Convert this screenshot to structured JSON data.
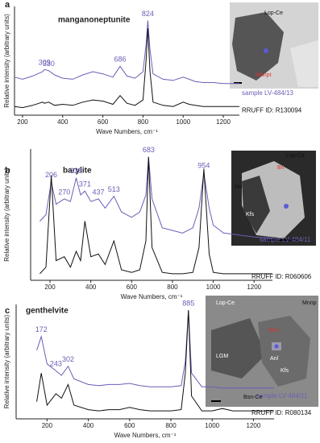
{
  "chart_data": [
    {
      "type": "line",
      "letter": "a",
      "title": "manganoneptunite",
      "x_label": "Wave Numbers, cm⁻¹",
      "y_label": "Relative intensity (arbitrary units)",
      "x": [
        160,
        200,
        250,
        300,
        309,
        330,
        360,
        400,
        450,
        500,
        550,
        600,
        650,
        686,
        720,
        760,
        800,
        815,
        824,
        835,
        850,
        900,
        950,
        1000,
        1030,
        1060,
        1100,
        1150,
        1200,
        1280
      ],
      "xlim": [
        160,
        1280
      ],
      "xticks": [
        200,
        400,
        600,
        800,
        1000,
        1200
      ],
      "ylim": [
        0,
        100
      ],
      "series": [
        {
          "name": "sample LV-484/13",
          "color": "#6a5fb5",
          "values": [
            35,
            33,
            36,
            40,
            42,
            41,
            37,
            34,
            33,
            37,
            40,
            38,
            35,
            45,
            36,
            34,
            40,
            65,
            87,
            60,
            38,
            33,
            32,
            35,
            33,
            31,
            30,
            30,
            29,
            29
          ]
        },
        {
          "name": "RRUFF ID: R130094",
          "color": "#111111",
          "values": [
            8,
            7,
            9,
            12,
            11,
            12,
            9,
            10,
            9,
            12,
            14,
            13,
            10,
            18,
            11,
            9,
            14,
            50,
            80,
            40,
            12,
            9,
            8,
            12,
            10,
            9,
            8,
            8,
            8,
            8
          ]
        }
      ],
      "peak_labels": [
        309,
        330,
        686,
        824
      ],
      "inset_labels": [
        "Lop-Ce",
        "Mnnpt"
      ]
    },
    {
      "type": "line",
      "letter": "b",
      "title": "barylite",
      "x_label": "Wave Numbers, cm⁻¹",
      "y_label": "Relative intensity (arbitrary units)",
      "x": [
        105,
        150,
        180,
        206,
        230,
        270,
        300,
        328,
        350,
        371,
        400,
        437,
        470,
        513,
        550,
        600,
        640,
        670,
        683,
        700,
        750,
        800,
        850,
        900,
        930,
        954,
        980,
        1000,
        1050,
        1100,
        1150,
        1200,
        1290
      ],
      "xlim": [
        105,
        1290
      ],
      "xticks": [
        200,
        400,
        600,
        800,
        1000,
        1200
      ],
      "ylim": [
        0,
        100
      ],
      "series": [
        {
          "name": "sample LV-484/11",
          "color": "#6a5fb5",
          "values": [
            null,
            45,
            50,
            75,
            58,
            62,
            60,
            78,
            65,
            68,
            60,
            62,
            55,
            64,
            52,
            48,
            52,
            65,
            94,
            62,
            40,
            38,
            36,
            40,
            55,
            82,
            55,
            42,
            36,
            35,
            34,
            33,
            32
          ]
        },
        {
          "name": "RRUFF ID: R060606",
          "color": "#111111",
          "values": [
            null,
            5,
            10,
            80,
            15,
            18,
            10,
            22,
            15,
            45,
            18,
            20,
            12,
            30,
            8,
            6,
            8,
            30,
            94,
            25,
            6,
            5,
            5,
            6,
            25,
            85,
            20,
            6,
            5,
            5,
            5,
            5,
            5
          ]
        }
      ],
      "peak_labels": [
        206,
        270,
        328,
        371,
        437,
        513,
        683,
        954
      ],
      "inset_labels": [
        "Lop-Ce",
        "Ntr",
        "Brl",
        "Kfs"
      ]
    },
    {
      "type": "line",
      "letter": "c",
      "title": "genthelvite",
      "x_label": "Wave Numbers, cm⁻¹",
      "y_label": "Relative intensity (arbitrary units)",
      "x": [
        50,
        100,
        150,
        172,
        200,
        243,
        270,
        302,
        330,
        400,
        450,
        500,
        550,
        600,
        650,
        700,
        750,
        800,
        850,
        870,
        885,
        900,
        950,
        1000,
        1050,
        1100,
        1150,
        1200,
        1300
      ],
      "xlim": [
        50,
        1300
      ],
      "xticks": [
        200,
        400,
        600,
        800,
        1000,
        1200
      ],
      "ylim": [
        0,
        100
      ],
      "series": [
        {
          "name": "sample LV-484/11",
          "color": "#6a5fb5",
          "values": [
            null,
            null,
            60,
            72,
            48,
            42,
            38,
            46,
            35,
            30,
            29,
            30,
            30,
            31,
            29,
            28,
            28,
            28,
            29,
            50,
            95,
            40,
            28,
            28,
            27,
            27,
            27,
            27,
            27
          ]
        },
        {
          "name": "RRUFF ID: R080134",
          "color": "#111111",
          "values": [
            null,
            null,
            15,
            40,
            12,
            22,
            18,
            30,
            12,
            8,
            7,
            8,
            8,
            10,
            8,
            7,
            7,
            7,
            8,
            40,
            95,
            20,
            7,
            7,
            9,
            7,
            7,
            7,
            7
          ]
        }
      ],
      "peak_labels": [
        172,
        243,
        302,
        885
      ],
      "inset_labels": [
        "Lop-Ce",
        "Ghv",
        "Mnnp",
        "Anl",
        "LGM",
        "Kfs",
        "Bsn-Ce"
      ]
    }
  ]
}
